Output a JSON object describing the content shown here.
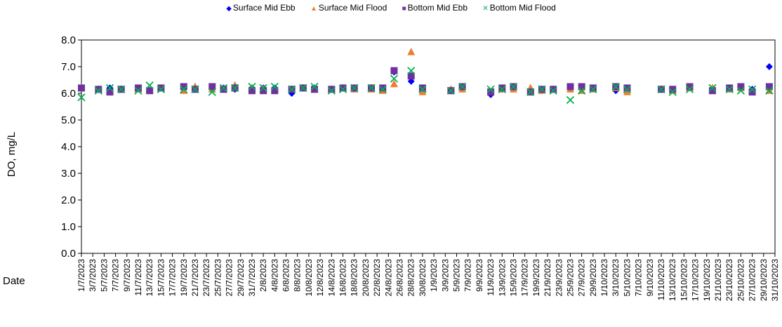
{
  "chart_data": {
    "type": "scatter",
    "title": "",
    "xlabel": "Date",
    "ylabel": "DO, mg/L",
    "ylim": [
      0,
      8
    ],
    "yticks": [
      "0.0",
      "1.0",
      "2.0",
      "3.0",
      "4.0",
      "5.0",
      "6.0",
      "7.0",
      "8.0"
    ],
    "x_start": "1/7/2023",
    "x_end": "31/10/2023",
    "xtick_labels": [
      "1/7/2023",
      "3/7/2023",
      "5/7/2023",
      "7/7/2023",
      "9/7/2023",
      "11/7/2023",
      "13/7/2023",
      "15/7/2023",
      "17/7/2023",
      "19/7/2023",
      "21/7/2023",
      "23/7/2023",
      "25/7/2023",
      "27/7/2023",
      "29/7/2023",
      "31/7/2023",
      "2/8/2023",
      "4/8/2023",
      "6/8/2023",
      "8/8/2023",
      "10/8/2023",
      "12/8/2023",
      "14/8/2023",
      "16/8/2023",
      "18/8/2023",
      "20/8/2023",
      "22/8/2023",
      "24/8/2023",
      "26/8/2023",
      "28/8/2023",
      "30/8/2023",
      "1/9/2023",
      "3/9/2023",
      "5/9/2023",
      "7/9/2023",
      "9/9/2023",
      "11/9/2023",
      "13/9/2023",
      "15/9/2023",
      "17/9/2023",
      "19/9/2023",
      "21/9/2023",
      "23/9/2023",
      "25/9/2023",
      "27/9/2023",
      "29/9/2023",
      "1/10/2023",
      "3/10/2023",
      "5/10/2023",
      "7/10/2023",
      "9/10/2023",
      "11/10/2023",
      "13/10/2023",
      "15/10/2023",
      "17/10/2023",
      "19/10/2023",
      "21/10/2023",
      "23/10/2023",
      "25/10/2023",
      "27/10/2023",
      "29/10/2023",
      "31/10/2023"
    ],
    "x_dates": [
      "1/7/2023",
      "4/7/2023",
      "6/7/2023",
      "8/7/2023",
      "11/7/2023",
      "13/7/2023",
      "15/7/2023",
      "19/7/2023",
      "21/7/2023",
      "24/7/2023",
      "26/7/2023",
      "28/7/2023",
      "31/7/2023",
      "2/8/2023",
      "4/8/2023",
      "7/8/2023",
      "9/8/2023",
      "11/8/2023",
      "14/8/2023",
      "16/8/2023",
      "18/8/2023",
      "21/8/2023",
      "23/8/2023",
      "25/8/2023",
      "28/8/2023",
      "30/8/2023",
      "4/9/2023",
      "6/9/2023",
      "11/9/2023",
      "13/9/2023",
      "15/9/2023",
      "18/9/2023",
      "20/9/2023",
      "22/9/2023",
      "25/9/2023",
      "27/9/2023",
      "29/9/2023",
      "3/10/2023",
      "5/10/2023",
      "11/10/2023",
      "13/10/2023",
      "16/10/2023",
      "20/10/2023",
      "23/10/2023",
      "25/10/2023",
      "27/10/2023",
      "30/10/2023"
    ],
    "grid": false,
    "legend_position": "top",
    "series": [
      {
        "name": "Surface Mid Ebb",
        "marker": "diamond",
        "color": "#0000ff",
        "values": [
          6.2,
          6.15,
          6.2,
          6.15,
          6.2,
          6.1,
          6.2,
          6.2,
          6.2,
          6.15,
          6.2,
          6.15,
          6.2,
          6.2,
          6.2,
          6.0,
          6.2,
          6.2,
          6.15,
          6.2,
          6.2,
          6.2,
          6.2,
          6.8,
          6.45,
          6.2,
          6.1,
          6.2,
          5.95,
          6.15,
          6.2,
          6.05,
          6.15,
          6.15,
          6.2,
          6.25,
          6.2,
          6.1,
          6.15,
          6.15,
          6.15,
          6.2,
          6.15,
          6.2,
          6.25,
          6.15,
          7.0
        ]
      },
      {
        "name": "Surface Mid Flood",
        "marker": "triangle",
        "color": "#ed7d31",
        "values": [
          6.2,
          6.15,
          6.1,
          6.15,
          6.15,
          6.1,
          6.2,
          6.1,
          6.25,
          6.15,
          6.15,
          6.3,
          6.2,
          6.15,
          6.15,
          6.15,
          6.2,
          6.15,
          6.15,
          6.2,
          6.15,
          6.15,
          6.1,
          6.35,
          7.55,
          6.05,
          6.15,
          6.15,
          6.05,
          6.15,
          6.15,
          6.2,
          6.1,
          6.15,
          6.15,
          6.1,
          6.15,
          6.2,
          6.05,
          6.15,
          6.1,
          6.2,
          6.2,
          6.15,
          6.2,
          6.05,
          6.1
        ]
      },
      {
        "name": "Bottom Mid Ebb",
        "marker": "square",
        "color": "#7030a0",
        "values": [
          6.2,
          6.15,
          6.05,
          6.15,
          6.2,
          6.1,
          6.2,
          6.25,
          6.15,
          6.25,
          6.15,
          6.2,
          6.1,
          6.1,
          6.1,
          6.15,
          6.2,
          6.15,
          6.15,
          6.2,
          6.2,
          6.2,
          6.2,
          6.85,
          6.65,
          6.2,
          6.1,
          6.25,
          6.05,
          6.2,
          6.25,
          6.05,
          6.15,
          6.15,
          6.25,
          6.25,
          6.2,
          6.25,
          6.2,
          6.15,
          6.15,
          6.25,
          6.1,
          6.2,
          6.25,
          6.05,
          6.25
        ]
      },
      {
        "name": "Bottom Mid Flood",
        "marker": "x",
        "color": "#00b050",
        "values": [
          5.85,
          6.1,
          6.2,
          6.15,
          6.1,
          6.3,
          6.15,
          6.15,
          6.15,
          6.05,
          6.2,
          6.2,
          6.25,
          6.2,
          6.25,
          6.15,
          6.2,
          6.25,
          6.1,
          6.15,
          6.2,
          6.2,
          6.15,
          6.55,
          6.85,
          6.15,
          6.1,
          6.25,
          6.15,
          6.15,
          6.25,
          6.05,
          6.15,
          6.1,
          5.75,
          6.1,
          6.15,
          6.25,
          6.15,
          6.15,
          6.05,
          6.15,
          6.2,
          6.15,
          6.1,
          6.15,
          6.1
        ]
      }
    ]
  }
}
